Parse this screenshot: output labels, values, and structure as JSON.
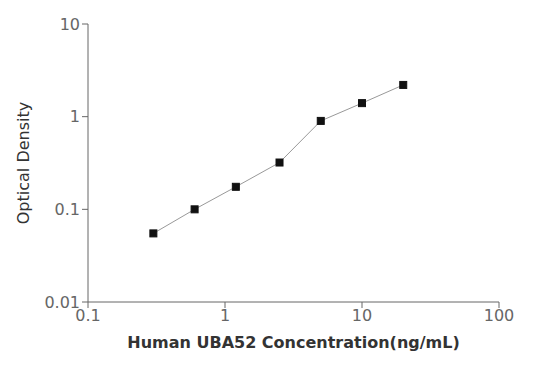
{
  "chart_data": {
    "type": "line",
    "x": [
      0.3,
      0.6,
      1.2,
      2.5,
      5,
      10,
      20
    ],
    "values": [
      0.055,
      0.1,
      0.175,
      0.32,
      0.9,
      1.4,
      2.2
    ],
    "xlabel": "Human UBA52 Concentration(ng/mL)",
    "ylabel": "Optical Density",
    "xlim": [
      0.1,
      100
    ],
    "ylim": [
      0.01,
      10
    ],
    "xticks": [
      0.1,
      1,
      10,
      100
    ],
    "yticks": [
      0.01,
      0.1,
      1,
      10
    ],
    "log": true,
    "grid": false,
    "color": "#999999",
    "colors": [
      "#111111",
      "#111111",
      "#111111",
      "#111111",
      "#111111",
      "#111111",
      "#111111"
    ],
    "marker": "square",
    "line_style": "solid"
  }
}
